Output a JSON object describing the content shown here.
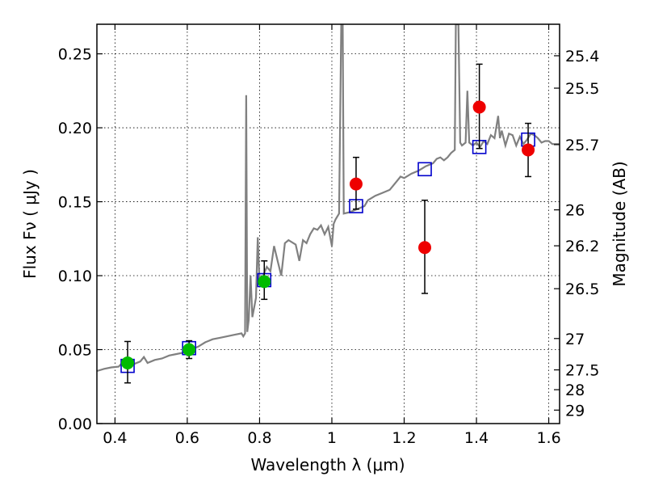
{
  "chart_data": {
    "type": "scatter",
    "xlabel": "Wavelength  λ (μm)",
    "ylabel": "Flux  Fν  ( μJy )",
    "ylabel_right": "Magnitude (AB)",
    "xlim": [
      0.35,
      1.63
    ],
    "ylim": [
      0.0,
      0.27
    ],
    "grid": true,
    "x_ticks": [
      {
        "value": 0.4,
        "label": "0.4"
      },
      {
        "value": 0.6,
        "label": "0.6"
      },
      {
        "value": 0.8,
        "label": "0.8"
      },
      {
        "value": 1.0,
        "label": "1"
      },
      {
        "value": 1.2,
        "label": "1.2"
      },
      {
        "value": 1.4,
        "label": "1.4"
      },
      {
        "value": 1.6,
        "label": "1.6"
      }
    ],
    "y_ticks": [
      {
        "value": 0.0,
        "label": "0.00"
      },
      {
        "value": 0.05,
        "label": "0.05"
      },
      {
        "value": 0.1,
        "label": "0.10"
      },
      {
        "value": 0.15,
        "label": "0.15"
      },
      {
        "value": 0.2,
        "label": "0.20"
      },
      {
        "value": 0.25,
        "label": "0.25"
      }
    ],
    "right_ticks": [
      {
        "flux": 0.2487,
        "label": "25.4"
      },
      {
        "flux": 0.2268,
        "label": "25.5"
      },
      {
        "flux": 0.1886,
        "label": "25.7"
      },
      {
        "flux": 0.1445,
        "label": "26"
      },
      {
        "flux": 0.1202,
        "label": "26.2"
      },
      {
        "flux": 0.0912,
        "label": "26.5"
      },
      {
        "flux": 0.0575,
        "label": "27"
      },
      {
        "flux": 0.0363,
        "label": "27.5"
      },
      {
        "flux": 0.0229,
        "label": "28"
      },
      {
        "flux": 0.0091,
        "label": "29"
      }
    ],
    "series": [
      {
        "kind": "line",
        "color": "#808080",
        "points": [
          [
            0.35,
            0.0355
          ],
          [
            0.37,
            0.037
          ],
          [
            0.39,
            0.038
          ],
          [
            0.41,
            0.0385
          ],
          [
            0.42,
            0.041
          ],
          [
            0.43,
            0.039
          ],
          [
            0.45,
            0.04
          ],
          [
            0.47,
            0.042
          ],
          [
            0.48,
            0.045
          ],
          [
            0.49,
            0.041
          ],
          [
            0.51,
            0.043
          ],
          [
            0.53,
            0.044
          ],
          [
            0.55,
            0.046
          ],
          [
            0.57,
            0.047
          ],
          [
            0.59,
            0.048
          ],
          [
            0.61,
            0.05
          ],
          [
            0.63,
            0.052
          ],
          [
            0.65,
            0.055
          ],
          [
            0.67,
            0.057
          ],
          [
            0.69,
            0.058
          ],
          [
            0.71,
            0.059
          ],
          [
            0.73,
            0.06
          ],
          [
            0.75,
            0.061
          ],
          [
            0.755,
            0.059
          ],
          [
            0.76,
            0.061
          ],
          [
            0.763,
            0.222
          ],
          [
            0.766,
            0.062
          ],
          [
            0.77,
            0.07
          ],
          [
            0.775,
            0.1
          ],
          [
            0.78,
            0.072
          ],
          [
            0.79,
            0.085
          ],
          [
            0.795,
            0.126
          ],
          [
            0.8,
            0.095
          ],
          [
            0.81,
            0.1
          ],
          [
            0.82,
            0.106
          ],
          [
            0.83,
            0.103
          ],
          [
            0.84,
            0.12
          ],
          [
            0.85,
            0.11
          ],
          [
            0.86,
            0.1
          ],
          [
            0.87,
            0.122
          ],
          [
            0.88,
            0.124
          ],
          [
            0.9,
            0.121
          ],
          [
            0.91,
            0.11
          ],
          [
            0.92,
            0.124
          ],
          [
            0.93,
            0.122
          ],
          [
            0.94,
            0.128
          ],
          [
            0.95,
            0.132
          ],
          [
            0.96,
            0.131
          ],
          [
            0.97,
            0.134
          ],
          [
            0.98,
            0.128
          ],
          [
            0.99,
            0.133
          ],
          [
            1.0,
            0.12
          ],
          [
            1.005,
            0.135
          ],
          [
            1.01,
            0.138
          ],
          [
            1.02,
            0.142
          ],
          [
            1.026,
            0.27
          ],
          [
            1.03,
            0.27
          ],
          [
            1.033,
            0.142
          ],
          [
            1.05,
            0.143
          ],
          [
            1.07,
            0.145
          ],
          [
            1.09,
            0.147
          ],
          [
            1.1,
            0.151
          ],
          [
            1.12,
            0.154
          ],
          [
            1.14,
            0.156
          ],
          [
            1.16,
            0.158
          ],
          [
            1.17,
            0.161
          ],
          [
            1.18,
            0.164
          ],
          [
            1.19,
            0.167
          ],
          [
            1.2,
            0.166
          ],
          [
            1.22,
            0.169
          ],
          [
            1.24,
            0.171
          ],
          [
            1.26,
            0.174
          ],
          [
            1.28,
            0.176
          ],
          [
            1.29,
            0.179
          ],
          [
            1.3,
            0.18
          ],
          [
            1.31,
            0.178
          ],
          [
            1.32,
            0.18
          ],
          [
            1.33,
            0.183
          ],
          [
            1.34,
            0.185
          ],
          [
            1.343,
            0.27
          ],
          [
            1.35,
            0.27
          ],
          [
            1.355,
            0.19
          ],
          [
            1.36,
            0.188
          ],
          [
            1.37,
            0.19
          ],
          [
            1.375,
            0.225
          ],
          [
            1.38,
            0.19
          ],
          [
            1.39,
            0.188
          ],
          [
            1.4,
            0.19
          ],
          [
            1.41,
            0.187
          ],
          [
            1.42,
            0.191
          ],
          [
            1.43,
            0.189
          ],
          [
            1.44,
            0.195
          ],
          [
            1.45,
            0.193
          ],
          [
            1.46,
            0.208
          ],
          [
            1.465,
            0.193
          ],
          [
            1.47,
            0.198
          ],
          [
            1.48,
            0.188
          ],
          [
            1.49,
            0.196
          ],
          [
            1.5,
            0.195
          ],
          [
            1.51,
            0.188
          ],
          [
            1.52,
            0.194
          ],
          [
            1.53,
            0.189
          ],
          [
            1.54,
            0.192
          ],
          [
            1.55,
            0.196
          ],
          [
            1.56,
            0.195
          ],
          [
            1.57,
            0.193
          ],
          [
            1.58,
            0.19
          ],
          [
            1.59,
            0.191
          ],
          [
            1.6,
            0.191
          ],
          [
            1.61,
            0.189
          ],
          [
            1.63,
            0.189
          ]
        ]
      },
      {
        "kind": "squares",
        "color": "#0000cc",
        "points": [
          [
            0.435,
            0.039
          ],
          [
            0.605,
            0.051
          ],
          [
            0.813,
            0.097
          ],
          [
            1.067,
            0.147
          ],
          [
            1.257,
            0.172
          ],
          [
            1.408,
            0.187
          ],
          [
            1.543,
            0.192
          ]
        ]
      },
      {
        "kind": "points",
        "color": "#00bb00",
        "points": [
          {
            "x": 0.435,
            "y": 0.041,
            "err": [
              0.0275,
              0.0555
            ]
          },
          {
            "x": 0.605,
            "y": 0.05,
            "err": [
              0.044,
              0.056
            ]
          },
          {
            "x": 0.813,
            "y": 0.096,
            "err": [
              0.084,
              0.11
            ]
          }
        ]
      },
      {
        "kind": "points",
        "color": "#ee0000",
        "points": [
          {
            "x": 1.067,
            "y": 0.162,
            "err": [
              0.145,
              0.18
            ]
          },
          {
            "x": 1.257,
            "y": 0.119,
            "err": [
              0.088,
              0.151
            ]
          },
          {
            "x": 1.408,
            "y": 0.214,
            "err": [
              0.186,
              0.243
            ]
          },
          {
            "x": 1.543,
            "y": 0.185,
            "err": [
              0.167,
              0.203
            ]
          }
        ]
      }
    ]
  }
}
